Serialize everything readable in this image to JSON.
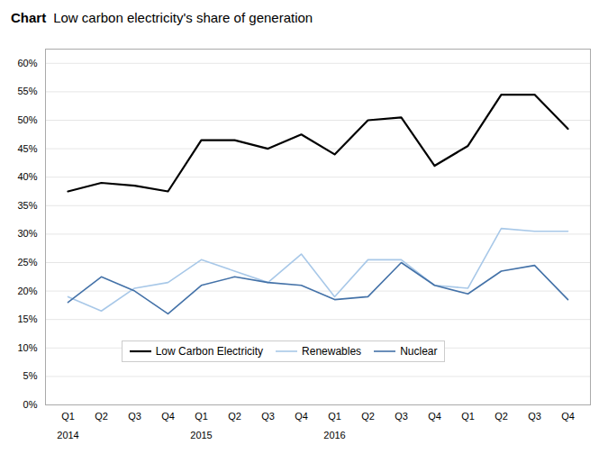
{
  "chart_data": {
    "type": "line",
    "title_label": "Chart",
    "title": "Low carbon electricity's share of generation",
    "categories": [
      "Q1",
      "Q2",
      "Q3",
      "Q4",
      "Q1",
      "Q2",
      "Q3",
      "Q4",
      "Q1",
      "Q2",
      "Q3",
      "Q4",
      "Q1",
      "Q2",
      "Q3",
      "Q4"
    ],
    "annotations": [
      {
        "text": "2014",
        "x": 0
      },
      {
        "text": "2015",
        "x": 4
      },
      {
        "text": "2016",
        "x": 8
      }
    ],
    "series": [
      {
        "name": "Low Carbon Electricity",
        "color": "#000000",
        "values": [
          0.375,
          0.39,
          0.385,
          0.375,
          0.465,
          0.465,
          0.45,
          0.475,
          0.44,
          0.5,
          0.505,
          0.42,
          0.455,
          0.545,
          0.545,
          0.485
        ]
      },
      {
        "name": "Renewables",
        "color": "#a8c8e8",
        "values": [
          0.19,
          0.165,
          0.205,
          0.215,
          0.255,
          0.235,
          0.215,
          0.265,
          0.19,
          0.255,
          0.255,
          0.21,
          0.205,
          0.31,
          0.305,
          0.305
        ]
      },
      {
        "name": "Nuclear",
        "color": "#4472a8",
        "values": [
          0.18,
          0.225,
          0.2,
          0.16,
          0.21,
          0.225,
          0.215,
          0.21,
          0.185,
          0.19,
          0.25,
          0.21,
          0.195,
          0.235,
          0.245,
          0.185
        ]
      }
    ],
    "ylim": [
      0,
      0.625
    ],
    "yticks": [
      {
        "value": 0.0,
        "label": "0%"
      },
      {
        "value": 0.05,
        "label": "5%"
      },
      {
        "value": 0.1,
        "label": "10%"
      },
      {
        "value": 0.15,
        "label": "15%"
      },
      {
        "value": 0.2,
        "label": "20%"
      },
      {
        "value": 0.25,
        "label": "25%"
      },
      {
        "value": 0.3,
        "label": "30%"
      },
      {
        "value": 0.35,
        "label": "35%"
      },
      {
        "value": 0.4,
        "label": "40%"
      },
      {
        "value": 0.45,
        "label": "45%"
      },
      {
        "value": 0.5,
        "label": "50%"
      },
      {
        "value": 0.55,
        "label": "55%"
      },
      {
        "value": 0.6,
        "label": "60%"
      }
    ],
    "grid": true,
    "legend": "lower left"
  }
}
